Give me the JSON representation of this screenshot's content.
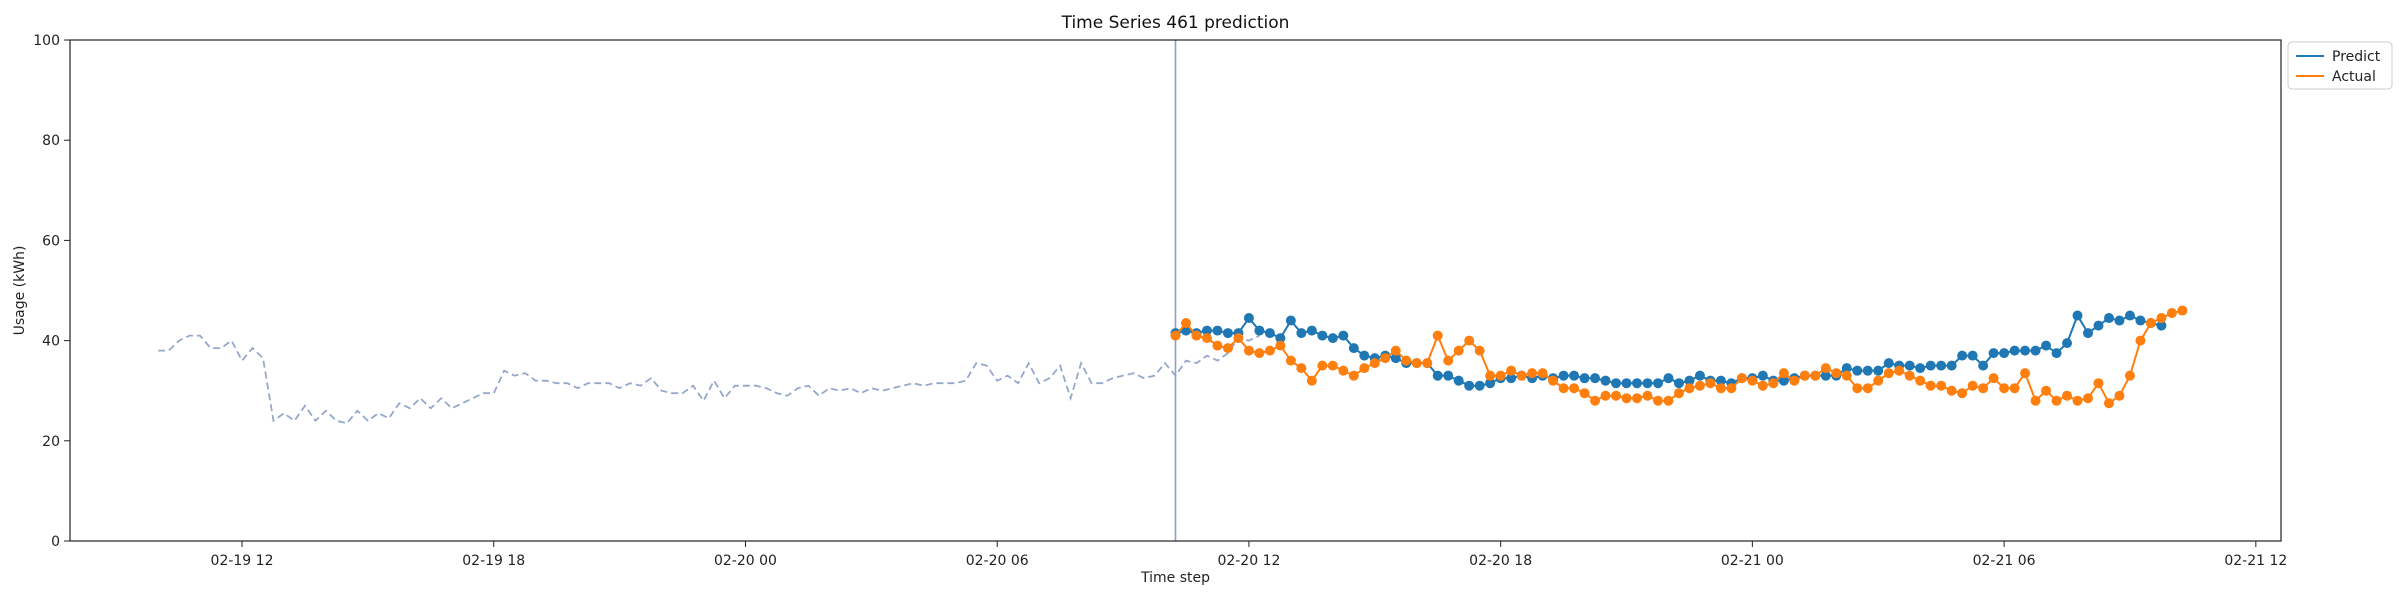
{
  "chart_data": {
    "type": "line",
    "title": "Time Series 461 prediction",
    "xlabel": "Time step",
    "ylabel": "Usage (kWh)",
    "ylim": [
      0,
      100
    ],
    "y_ticks": [
      0,
      20,
      40,
      60,
      80,
      100
    ],
    "x_ticks": [
      "02-19 12",
      "02-19 18",
      "02-20 00",
      "02-20 06",
      "02-20 12",
      "02-20 18",
      "02-21 00",
      "02-21 06",
      "02-21 12"
    ],
    "x_tick_positions_hours": [
      0,
      6,
      12,
      18,
      24,
      30,
      36,
      42,
      48
    ],
    "x_range_hours": [
      -4.1,
      48.6
    ],
    "forecast_start_hours": 22.25,
    "legend": {
      "placement": "upper-right-outside",
      "entries": [
        "Predict",
        "Actual"
      ]
    },
    "colors": {
      "history": "#95a8cb",
      "predict": "#1f77b4",
      "actual": "#ff7f0e",
      "divider": "#8aa0c8"
    },
    "history": {
      "x_start_hours": -2.0,
      "step_minutes": 15,
      "values": [
        38,
        38,
        40,
        41,
        41,
        38.5,
        38.5,
        40,
        36,
        38.5,
        36.5,
        24,
        25.5,
        24,
        27,
        24,
        26,
        24,
        23.5,
        26,
        24,
        25.5,
        24.5,
        27.5,
        26.5,
        28.5,
        26.5,
        28.5,
        26.5,
        27.5,
        28.5,
        29.5,
        29.5,
        34,
        33,
        33.5,
        32,
        32,
        31.5,
        31.5,
        30.5,
        31.5,
        31.5,
        31.5,
        30.5,
        31.5,
        31,
        32.5,
        30,
        29.5,
        29.5,
        31,
        28,
        32,
        28.5,
        31,
        31,
        31,
        30.5,
        29.5,
        29,
        30.5,
        31,
        29,
        30.5,
        30,
        30.5,
        29.5,
        30.5,
        30,
        30.5,
        31,
        31.5,
        31,
        31.5,
        31.5,
        31.5,
        32,
        35.5,
        35,
        32,
        33,
        31.5,
        35.5,
        31.5,
        32.5,
        35,
        28.5,
        35.5,
        31.5,
        31.5,
        32.5,
        33,
        33.5,
        32.5,
        33,
        35.5,
        33,
        36,
        35.5,
        37,
        36,
        37.5,
        40.5,
        40,
        41
      ]
    },
    "series": [
      {
        "name": "Predict",
        "x_start_hours": 22.25,
        "step_minutes": 15,
        "values": [
          41.5,
          42,
          41.5,
          42,
          42,
          41.5,
          41.5,
          44.5,
          42,
          41.5,
          40.5,
          44,
          41.5,
          42,
          41,
          40.5,
          41,
          38.5,
          37,
          36.5,
          37,
          36.5,
          35.5,
          35.5,
          35.5,
          33,
          33,
          32,
          31,
          31,
          31.5,
          32.5,
          32.5,
          33,
          32.5,
          33,
          32.5,
          33,
          33,
          32.5,
          32.5,
          32,
          31.5,
          31.5,
          31.5,
          31.5,
          31.5,
          32.5,
          31.5,
          32,
          33,
          32,
          32,
          31.5,
          32.5,
          32.5,
          33,
          32,
          32,
          32.5,
          33,
          33,
          33,
          33,
          34.5,
          34,
          34,
          34,
          35.5,
          35,
          35,
          34.5,
          35,
          35,
          35,
          37,
          37,
          35,
          37.5,
          37.5,
          38,
          38,
          38,
          39,
          37.5,
          39.5,
          45,
          41.5,
          43,
          44.5,
          44,
          45,
          44,
          43.5,
          43
        ]
      },
      {
        "name": "Actual",
        "x_start_hours": 22.25,
        "step_minutes": 15,
        "values": [
          41,
          43.5,
          41,
          40.5,
          39,
          38.5,
          40.5,
          38,
          37.5,
          38,
          39,
          36,
          34.5,
          32,
          35,
          35,
          34,
          33,
          34.5,
          35.5,
          36.5,
          38,
          36,
          35.5,
          35.5,
          41,
          36,
          38,
          40,
          38,
          33,
          33,
          34,
          33,
          33.5,
          33.5,
          32,
          30.5,
          30.5,
          29.5,
          28,
          29,
          29,
          28.5,
          28.5,
          29,
          28,
          28,
          29.5,
          30.5,
          31,
          31.5,
          30.5,
          30.5,
          32.5,
          32,
          31,
          31.5,
          33.5,
          32,
          33,
          33,
          34.5,
          33.5,
          33,
          30.5,
          30.5,
          32,
          33.5,
          34,
          33,
          32,
          31,
          31,
          30,
          29.5,
          31,
          30.5,
          32.5,
          30.5,
          30.5,
          33.5,
          28,
          30,
          28,
          29,
          28,
          28.5,
          31.5,
          27.5,
          29,
          33,
          40,
          43.5,
          44.5,
          45.5,
          46
        ]
      }
    ]
  }
}
